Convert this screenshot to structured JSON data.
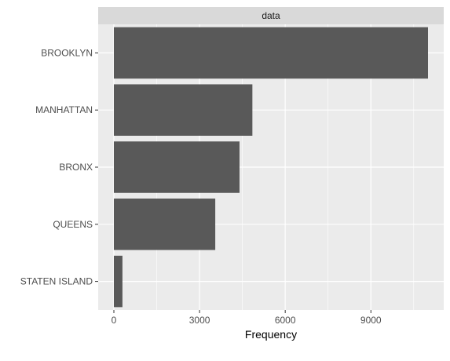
{
  "chart_data": {
    "type": "bar",
    "orientation": "horizontal",
    "facet_label": "data",
    "categories": [
      "BROOKLYN",
      "MANHATTAN",
      "BRONX",
      "QUEENS",
      "STATEN ISLAND"
    ],
    "values": [
      11000,
      4850,
      4400,
      3550,
      300
    ],
    "xlabel": "Frequency",
    "ylabel": "",
    "xlim": [
      -550,
      11550
    ],
    "xticks": [
      0,
      3000,
      6000,
      9000
    ],
    "xtick_labels": [
      "0",
      "3000",
      "6000",
      "9000"
    ],
    "grid": true,
    "colors": {
      "bar": "#595959",
      "panel": "#ebebeb",
      "strip": "#d9d9d9",
      "grid": "#ffffff"
    }
  }
}
